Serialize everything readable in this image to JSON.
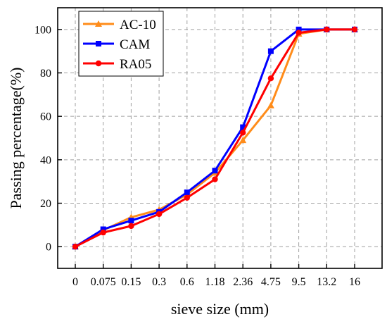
{
  "chart_data": {
    "type": "line",
    "xlabel": "sieve size (mm)",
    "ylabel": "Passing percentage(%)",
    "categories": [
      "0",
      "0.075",
      "0.15",
      "0.3",
      "0.6",
      "1.18",
      "2.36",
      "4.75",
      "9.5",
      "13.2",
      "16"
    ],
    "yticks": [
      "0",
      "20",
      "40",
      "60",
      "80",
      "100"
    ],
    "ylim": [
      -10,
      110
    ],
    "grid": true,
    "legend_position": "top-left",
    "series": [
      {
        "name": "AC-10",
        "color": "#ff8c1a",
        "marker": "triangle",
        "values": [
          0,
          7.5,
          13.5,
          17,
          24,
          34,
          49,
          65,
          98,
          100,
          100
        ]
      },
      {
        "name": "CAM",
        "color": "#0000ff",
        "marker": "square",
        "values": [
          0,
          8,
          12,
          16,
          25,
          35,
          55,
          90,
          100,
          100,
          100
        ]
      },
      {
        "name": "RA05",
        "color": "#ff0000",
        "marker": "circle",
        "values": [
          0,
          6.5,
          9.5,
          15,
          22.5,
          31,
          52.5,
          77.5,
          98.5,
          100,
          100
        ]
      }
    ]
  }
}
